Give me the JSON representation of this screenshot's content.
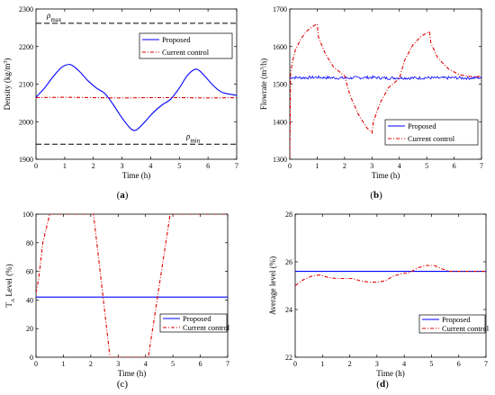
{
  "figure": {
    "panels": [
      "a",
      "b",
      "c",
      "d"
    ]
  },
  "chart_data": [
    {
      "id": "a",
      "type": "line",
      "caption": "(a)",
      "caption_bold": "a",
      "xlabel": "Time (h)",
      "ylabel": "Density (kg/m",
      "ylabel_sup": "3",
      "ylabel_end": ")",
      "xlim": [
        0,
        7
      ],
      "ylim": [
        1900,
        2300
      ],
      "xticks": [
        0,
        1,
        2,
        3,
        4,
        5,
        6,
        7
      ],
      "yticks": [
        1900,
        2000,
        2100,
        2200,
        2300
      ],
      "grid": false,
      "legend": "top-right",
      "hlines": [
        {
          "y": 2262,
          "label": "ρ",
          "sub": "max",
          "color": "#000000",
          "style": "dashed"
        },
        {
          "y": 1940,
          "label": "ρ",
          "sub": "min",
          "color": "#000000",
          "style": "dashed"
        }
      ],
      "series": [
        {
          "name": "Proposed",
          "color": "#0000ff",
          "style": "solid",
          "x": [
            0,
            0.3,
            0.6,
            0.9,
            1.2,
            1.5,
            1.8,
            2.1,
            2.4,
            2.7,
            3.0,
            3.3,
            3.5,
            3.8,
            4.1,
            4.4,
            4.7,
            5.0,
            5.3,
            5.6,
            5.9,
            6.2,
            6.5,
            7.0
          ],
          "y": [
            2065,
            2090,
            2120,
            2145,
            2152,
            2135,
            2110,
            2090,
            2075,
            2045,
            2010,
            1982,
            1978,
            2000,
            2025,
            2045,
            2060,
            2090,
            2125,
            2140,
            2120,
            2095,
            2078,
            2070
          ]
        },
        {
          "name": "Current control",
          "color": "#e00000",
          "style": "dashdot",
          "x": [
            0,
            1,
            2,
            3,
            4,
            5,
            6,
            7
          ],
          "y": [
            2064,
            2065,
            2064,
            2063,
            2064,
            2064,
            2063,
            2064
          ]
        }
      ]
    },
    {
      "id": "b",
      "type": "line",
      "caption": "(b)",
      "caption_bold": "b",
      "xlabel": "Time (h)",
      "ylabel": "Flowrate (m",
      "ylabel_sup": "3",
      "ylabel_end": "/h)",
      "xlim": [
        0,
        7
      ],
      "ylim": [
        1300,
        1700
      ],
      "xticks": [
        0,
        1,
        2,
        3,
        4,
        5,
        6,
        7
      ],
      "yticks": [
        1300,
        1400,
        1500,
        1600,
        1700
      ],
      "grid": false,
      "legend": "bottom-right",
      "series": [
        {
          "name": "Proposed",
          "color": "#0000ff",
          "style": "solid",
          "noise": 4,
          "x": [
            0,
            0.5,
            1,
            1.5,
            2,
            2.5,
            3,
            3.5,
            4,
            4.5,
            5,
            5.5,
            6,
            6.5,
            7
          ],
          "y": [
            1518,
            1517,
            1518,
            1517,
            1516,
            1517,
            1518,
            1516,
            1517,
            1516,
            1517,
            1516,
            1517,
            1516,
            1517
          ]
        },
        {
          "name": "Current control",
          "color": "#e00000",
          "style": "dashdot",
          "x": [
            0,
            0.03,
            0.1,
            0.2,
            0.4,
            0.6,
            0.8,
            1.0,
            1.05,
            1.3,
            1.6,
            2.0,
            2.2,
            2.5,
            2.8,
            3.0,
            3.05,
            3.3,
            3.6,
            4.0,
            4.2,
            4.5,
            4.8,
            5.1,
            5.15,
            5.4,
            5.8,
            6.2,
            6.6,
            7.0
          ],
          "y": [
            1305,
            1530,
            1560,
            1590,
            1620,
            1640,
            1652,
            1660,
            1625,
            1580,
            1545,
            1522,
            1470,
            1420,
            1385,
            1370,
            1400,
            1450,
            1490,
            1515,
            1565,
            1605,
            1628,
            1640,
            1610,
            1570,
            1540,
            1525,
            1520,
            1520
          ]
        }
      ]
    },
    {
      "id": "c",
      "type": "line",
      "caption": "(c)",
      "caption_bold": "",
      "xlabel": "Time (h)",
      "ylabel": "T",
      "ylabel_sub": "A",
      "ylabel_end": " Level (%)",
      "xlim": [
        0,
        7
      ],
      "ylim": [
        0,
        100
      ],
      "xticks": [
        0,
        1,
        2,
        3,
        4,
        5,
        6,
        7
      ],
      "yticks": [
        0,
        20,
        40,
        60,
        80,
        100
      ],
      "grid": false,
      "legend": "bottom-right",
      "series": [
        {
          "name": "Proposed",
          "color": "#0000ff",
          "style": "solid",
          "x": [
            0,
            7
          ],
          "y": [
            42,
            42
          ]
        },
        {
          "name": "Current control",
          "color": "#e00000",
          "style": "dashdot",
          "x": [
            0,
            0.1,
            0.25,
            0.5,
            2.1,
            2.7,
            4.1,
            4.9,
            7.0
          ],
          "y": [
            45,
            55,
            80,
            100,
            100,
            0,
            0,
            100,
            100
          ]
        }
      ]
    },
    {
      "id": "d",
      "type": "line",
      "caption": "(d)",
      "caption_bold": "d",
      "xlabel": "Time (h)",
      "ylabel": "Average level (%)",
      "xlim": [
        0,
        7
      ],
      "ylim": [
        22,
        28
      ],
      "xticks": [
        0,
        1,
        2,
        3,
        4,
        5,
        6,
        7
      ],
      "yticks": [
        22,
        24,
        26,
        28
      ],
      "grid": false,
      "legend": "bottom-right",
      "series": [
        {
          "name": "Proposed",
          "color": "#0000ff",
          "style": "solid",
          "x": [
            0,
            7
          ],
          "y": [
            25.6,
            25.6
          ]
        },
        {
          "name": "Current control",
          "color": "#e00000",
          "style": "dashdot",
          "x": [
            0,
            0.3,
            0.6,
            0.9,
            1.2,
            1.5,
            1.8,
            2.1,
            2.4,
            2.7,
            3.0,
            3.3,
            3.6,
            3.9,
            4.2,
            4.5,
            4.8,
            5.1,
            5.4,
            5.7,
            6.0,
            6.5,
            7.0
          ],
          "y": [
            25.0,
            25.25,
            25.4,
            25.45,
            25.35,
            25.3,
            25.3,
            25.3,
            25.2,
            25.15,
            25.15,
            25.2,
            25.4,
            25.5,
            25.55,
            25.75,
            25.85,
            25.85,
            25.7,
            25.6,
            25.6,
            25.6,
            25.6
          ]
        }
      ]
    }
  ]
}
